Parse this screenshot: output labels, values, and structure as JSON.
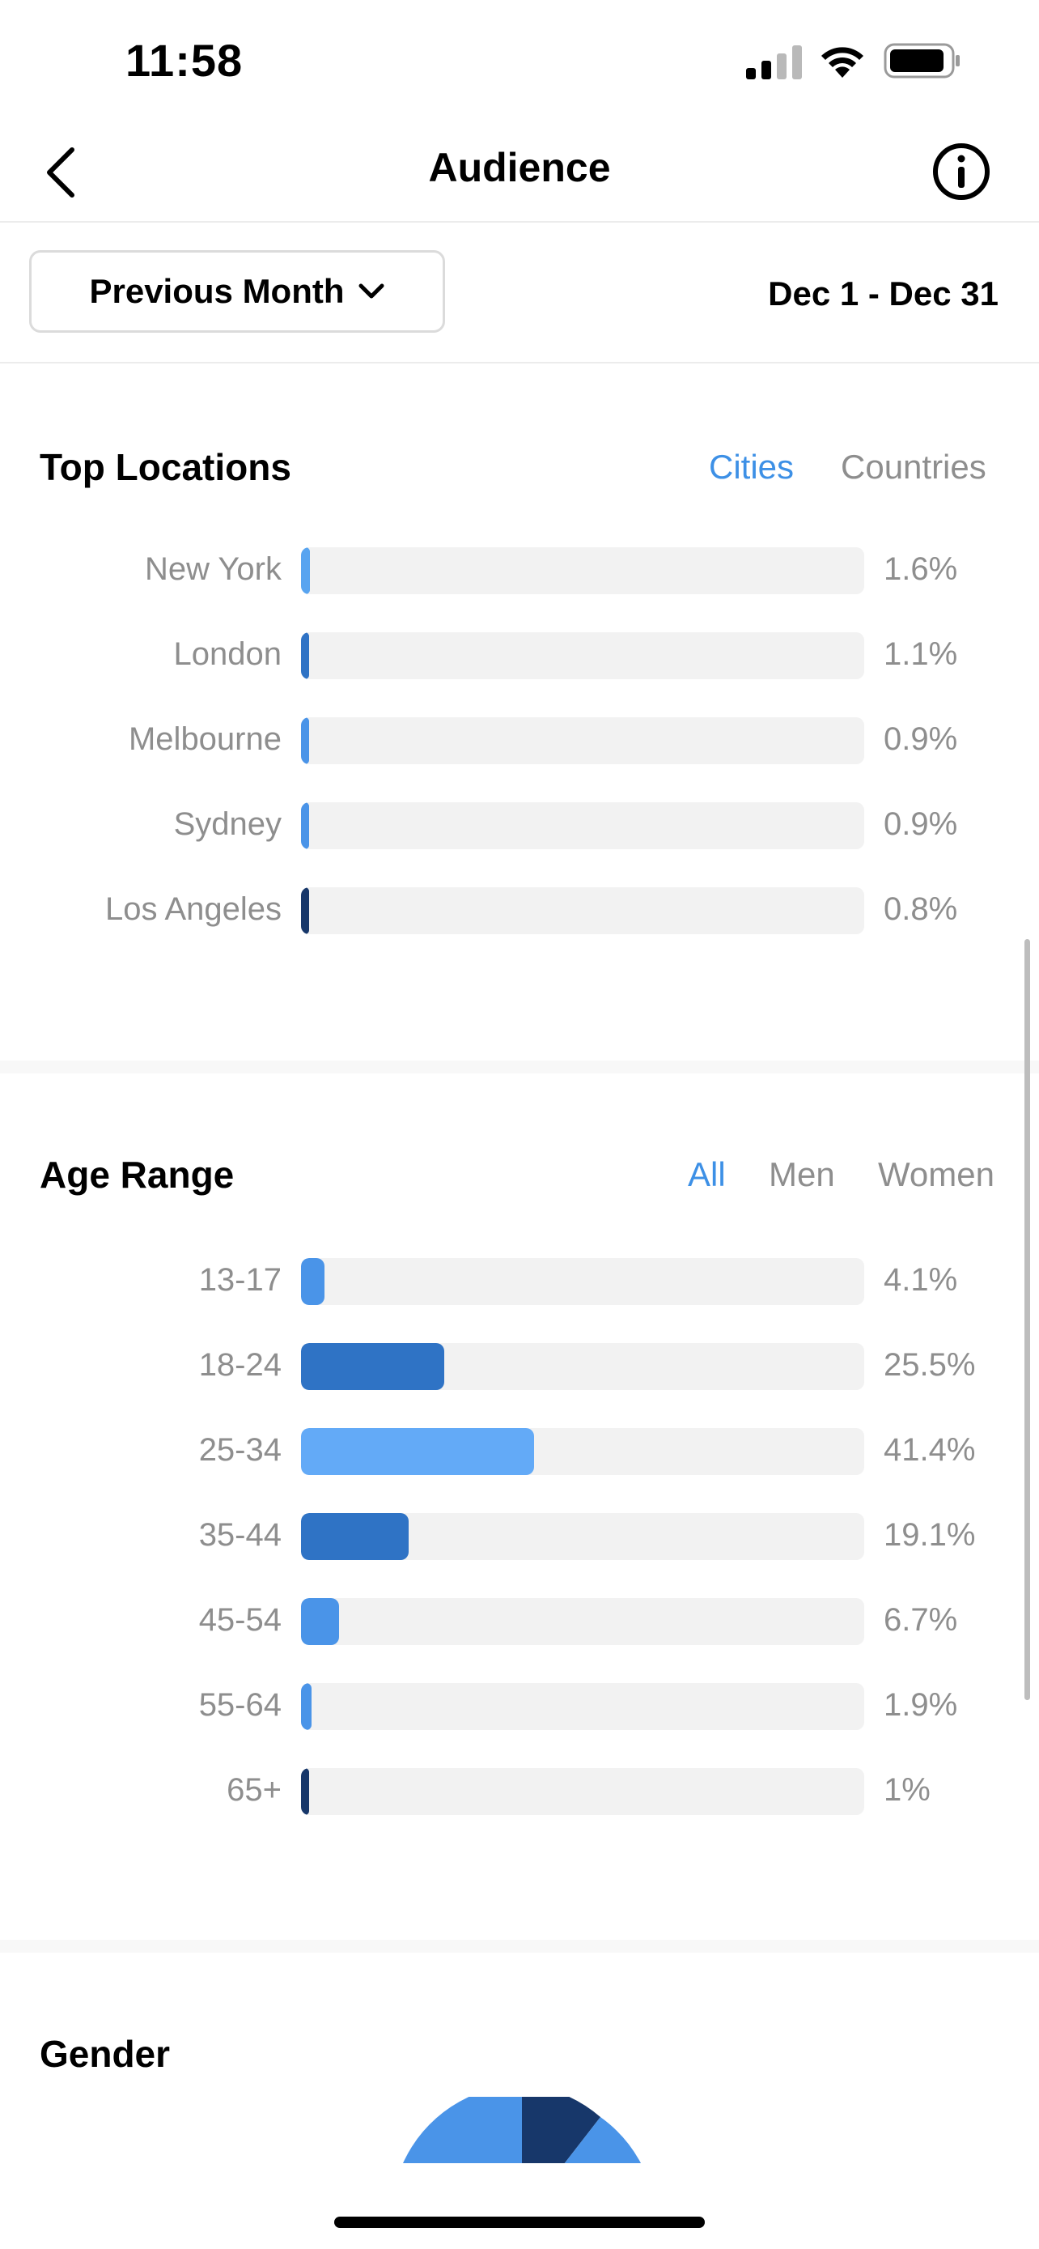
{
  "status_bar": {
    "time": "11:58"
  },
  "nav": {
    "title": "Audience"
  },
  "filter": {
    "period_label": "Previous Month",
    "date_range": "Dec 1 - Dec 31"
  },
  "top_locations": {
    "title": "Top Locations",
    "tabs": [
      {
        "label": "Cities",
        "active": true
      },
      {
        "label": "Countries",
        "active": false
      }
    ],
    "rows": [
      {
        "label": "New York",
        "value": 1.6,
        "display": "1.6%",
        "color": "#58a4f0"
      },
      {
        "label": "London",
        "value": 1.1,
        "display": "1.1%",
        "color": "#2f73c5"
      },
      {
        "label": "Melbourne",
        "value": 0.9,
        "display": "0.9%",
        "color": "#4a94e8"
      },
      {
        "label": "Sydney",
        "value": 0.9,
        "display": "0.9%",
        "color": "#4a94e8"
      },
      {
        "label": "Los Angeles",
        "value": 0.8,
        "display": "0.8%",
        "color": "#17376a"
      }
    ]
  },
  "age_range": {
    "title": "Age Range",
    "tabs": [
      {
        "label": "All",
        "active": true
      },
      {
        "label": "Men",
        "active": false
      },
      {
        "label": "Women",
        "active": false
      }
    ],
    "rows": [
      {
        "label": "13-17",
        "value": 4.1,
        "display": "4.1%",
        "color": "#4a94e8"
      },
      {
        "label": "18-24",
        "value": 25.5,
        "display": "25.5%",
        "color": "#2f73c5"
      },
      {
        "label": "25-34",
        "value": 41.4,
        "display": "41.4%",
        "color": "#63aaf7"
      },
      {
        "label": "35-44",
        "value": 19.1,
        "display": "19.1%",
        "color": "#2f73c5"
      },
      {
        "label": "45-54",
        "value": 6.7,
        "display": "6.7%",
        "color": "#4a94e8"
      },
      {
        "label": "55-64",
        "value": 1.9,
        "display": "1.9%",
        "color": "#4a94e8"
      },
      {
        "label": "65+",
        "value": 1,
        "display": "1%",
        "color": "#17376a"
      }
    ]
  },
  "gender": {
    "title": "Gender",
    "colors": {
      "women": "#4a94e8",
      "men": "#17376a"
    }
  }
}
